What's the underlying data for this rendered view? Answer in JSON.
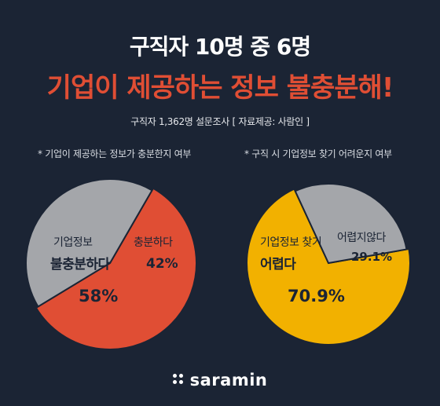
{
  "header": {
    "title_line1": "구직자 10명 중 6명",
    "title_line2": "기업이 제공하는 정보 불충분해!",
    "subtitle": "구직자 1,362명 설문조사 [ 자료제공: 사람인 ]"
  },
  "colors": {
    "background": "#1b2434",
    "accent_red": "#e04e34",
    "accent_yellow": "#f2b100",
    "gray": "#a4a6aa"
  },
  "chart_data": [
    {
      "type": "pie",
      "title": "* 기업이 제공하는 정보가 충분한지 여부",
      "slices": [
        {
          "label_line1": "기업정보",
          "label_line2": "불충분하다",
          "value": 58,
          "value_label": "58%"
        },
        {
          "label_line1": "충분하다",
          "label_line2": "",
          "value": 42,
          "value_label": "42%"
        }
      ]
    },
    {
      "type": "pie",
      "title": "* 구직 시 기업정보 찾기 어려운지 여부",
      "slices": [
        {
          "label_line1": "기업정보 찾기",
          "label_line2": "어렵다",
          "value": 70.9,
          "value_label": "70.9%"
        },
        {
          "label_line1": "어렵지않다",
          "label_line2": "",
          "value": 29.1,
          "value_label": "29.1%"
        }
      ]
    }
  ],
  "logo": {
    "text": "saramin"
  }
}
